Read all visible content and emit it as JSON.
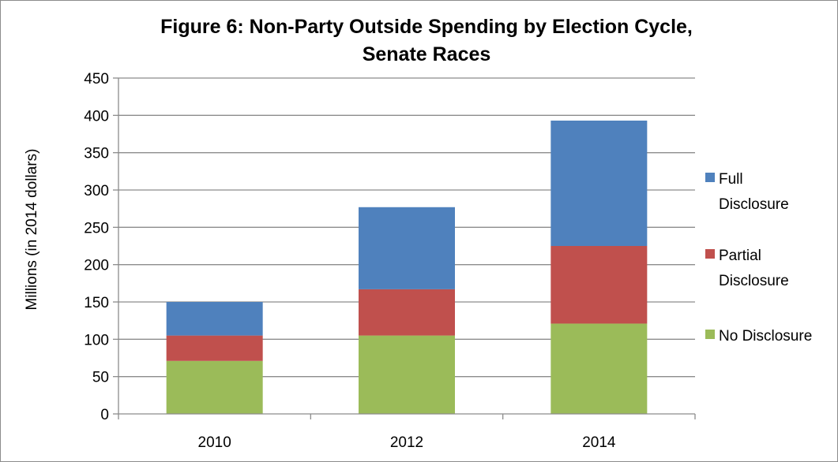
{
  "chart_data": {
    "type": "bar",
    "stacked": true,
    "title_lines": [
      "Figure 6: Non-Party Outside Spending by Election Cycle,",
      "Senate Races"
    ],
    "ylabel": "Millions  (in 2014 dollars)",
    "xlabel": "",
    "categories": [
      "2010",
      "2012",
      "2014"
    ],
    "ylim": [
      0,
      450
    ],
    "yticks": [
      0,
      50,
      100,
      150,
      200,
      250,
      300,
      350,
      400,
      450
    ],
    "grid": true,
    "legend_position": "right",
    "series": [
      {
        "name": "No Disclosure",
        "color": "#9bbb59",
        "values": [
          71,
          105,
          121
        ]
      },
      {
        "name": "Partial Disclosure",
        "color": "#c0504d",
        "values": [
          34,
          62,
          104
        ]
      },
      {
        "name": "Full Disclosure",
        "color": "#4f81bd",
        "values": [
          45,
          110,
          168
        ]
      }
    ],
    "legend": [
      {
        "series": 2,
        "lines": [
          "Full",
          "Disclosure"
        ]
      },
      {
        "series": 1,
        "lines": [
          "Partial",
          "Disclosure"
        ]
      },
      {
        "series": 0,
        "lines": [
          "No Disclosure"
        ]
      }
    ]
  }
}
